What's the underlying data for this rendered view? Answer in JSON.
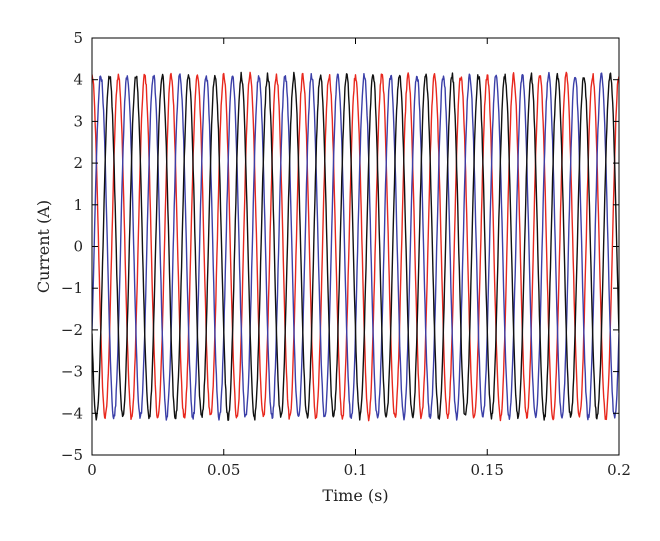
{
  "chart_data": {
    "type": "line",
    "xlabel": "Time (s)",
    "ylabel": "Current (A)",
    "xlim": [
      0,
      0.2
    ],
    "ylim": [
      -5,
      5
    ],
    "xticks": [
      0,
      0.05,
      0.1,
      0.15,
      0.2
    ],
    "xtick_labels": [
      "0",
      "0.05",
      "0.1",
      "0.15",
      "0.2"
    ],
    "yticks": [
      -5,
      -4,
      -3,
      -2,
      -1,
      0,
      1,
      2,
      3,
      4,
      5
    ],
    "ytick_labels": [
      "−5",
      "−4",
      "−3",
      "−2",
      "−1",
      "0",
      "1",
      "2",
      "3",
      "4",
      "5"
    ],
    "grid": false,
    "legend": "none",
    "waveform": {
      "amplitude_A": 4.1,
      "frequency_Hz": 100,
      "noise_A": 0.08,
      "sample_step_s": 0.0002
    },
    "series": [
      {
        "color": "#e8281e",
        "phase_deg": 90
      },
      {
        "color": "#3b3fa8",
        "phase_deg": -30
      },
      {
        "color": "#111111",
        "phase_deg": -150
      }
    ]
  }
}
